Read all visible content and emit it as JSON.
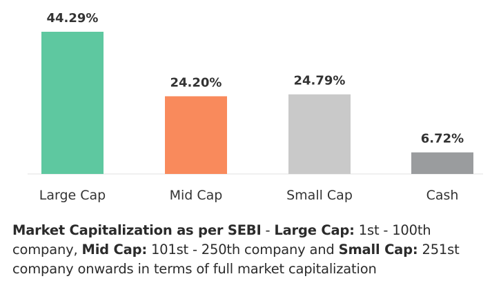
{
  "chart_data": {
    "type": "bar",
    "categories": [
      "Large Cap",
      "Mid Cap",
      "Small Cap",
      "Cash"
    ],
    "values": [
      44.29,
      24.2,
      24.79,
      6.72
    ],
    "value_labels": [
      "44.29%",
      "24.20%",
      "24.79%",
      "6.72%"
    ],
    "colors": [
      "#5ec8a0",
      "#f98a5c",
      "#c9c9c9",
      "#9a9c9e"
    ],
    "ylim": [
      0,
      44.29
    ],
    "grid": false,
    "legend": "none",
    "title": "",
    "xlabel": "",
    "ylabel": ""
  },
  "caption": {
    "part1_bold": "Market Capitalization as per SEBI",
    "part2": " - ",
    "part3_bold": "Large Cap:",
    "part4": " 1st - 100th company, ",
    "part5_bold": "Mid Cap:",
    "part6": " 101st - 250th company and ",
    "part7_bold": "Small Cap:",
    "part8": " 251st company onwards in terms of full market capitalization"
  }
}
